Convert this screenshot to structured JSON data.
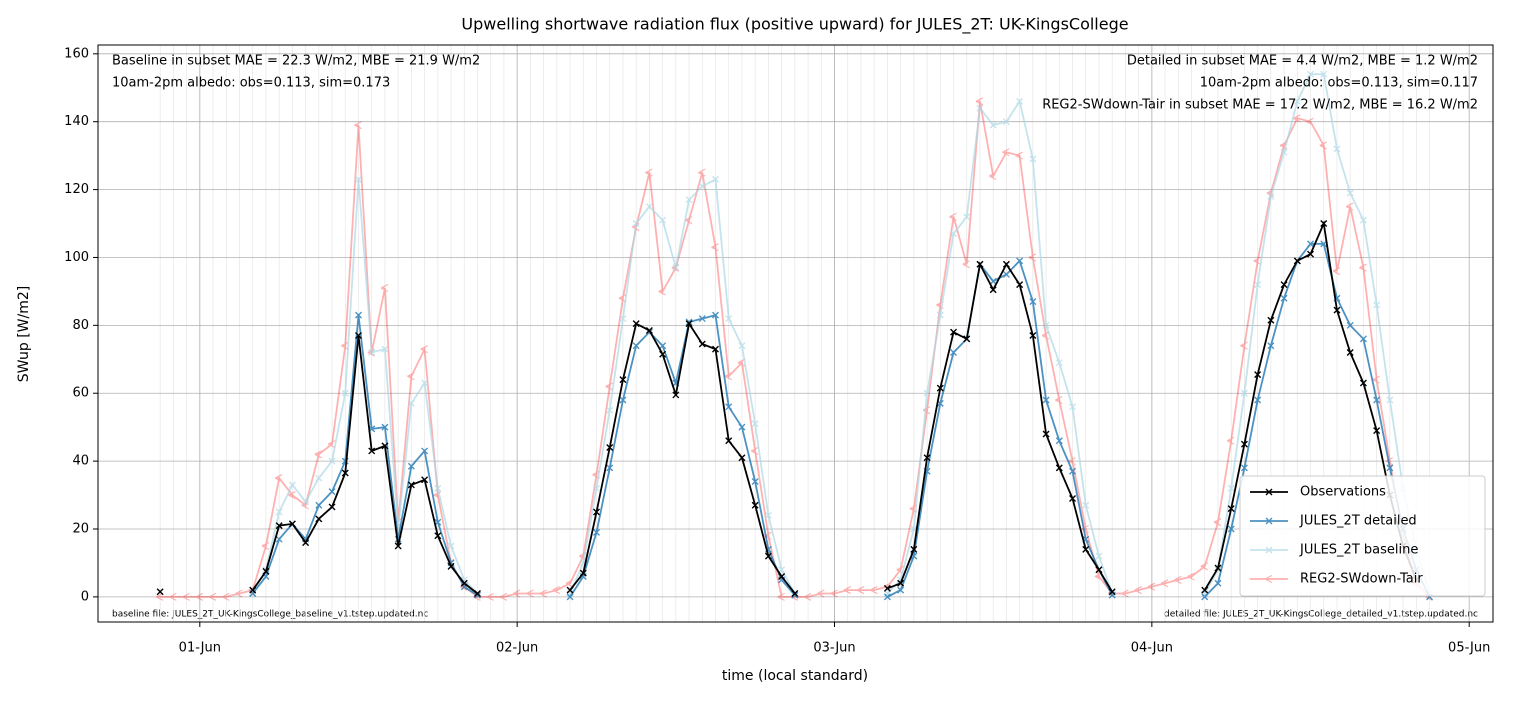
{
  "chart_data": {
    "type": "line",
    "title": "Upwelling shortwave radiation flux (positive upward) for JULES_2T: UK-KingsCollege",
    "x_label": "time (local standard)",
    "y_label": "SWup [W/m2]",
    "xlim": [
      -7.7,
      97.8
    ],
    "ylim": [
      -7.4,
      162.6
    ],
    "xticks": [
      {
        "value": 0,
        "label": "01-Jun"
      },
      {
        "value": 24,
        "label": "02-Jun"
      },
      {
        "value": 48,
        "label": "03-Jun"
      },
      {
        "value": 72,
        "label": "04-Jun"
      },
      {
        "value": 96,
        "label": "05-Jun"
      }
    ],
    "yticks": [
      0,
      20,
      40,
      60,
      80,
      100,
      120,
      140,
      160
    ],
    "grid": true,
    "minor_grid": true,
    "legend": "lower right",
    "annotations_left": [
      {
        "text": "Baseline in subset MAE = 22.3 W/m2, MBE = 21.9 W/m2",
        "color": "#add8e6"
      },
      {
        "text": "10am-2pm albedo: obs=0.113, sim=0.173",
        "color": "#000000"
      }
    ],
    "annotations_right": [
      {
        "text": "Detailed in subset MAE = 4.4 W/m2, MBE = 1.2 W/m2",
        "color": "#1f77b4"
      },
      {
        "text": "10am-2pm albedo: obs=0.113, sim=0.117",
        "color": "#000000"
      },
      {
        "text": "REG2-SWdown-Tair in subset MAE = 17.2 W/m2, MBE = 16.2 W/m2",
        "color": "#ff0000"
      }
    ],
    "footnote_left": "baseline file: JULES_2T_UK-KingsCollege_baseline_v1.tstep.updated.nc",
    "footnote_right": "detailed file: JULES_2T_UK-KingsCollege_detailed_v1.tstep.updated.nc",
    "x": [
      -3,
      -2,
      -1,
      0,
      1,
      2,
      3,
      4,
      5,
      6,
      7,
      8,
      9,
      10,
      11,
      12,
      13,
      14,
      15,
      16,
      17,
      18,
      19,
      20,
      21,
      22,
      23,
      24,
      25,
      26,
      27,
      28,
      29,
      30,
      31,
      32,
      33,
      34,
      35,
      36,
      37,
      38,
      39,
      40,
      41,
      42,
      43,
      44,
      45,
      46,
      47,
      48,
      49,
      50,
      51,
      52,
      53,
      54,
      55,
      56,
      57,
      58,
      59,
      60,
      61,
      62,
      63,
      64,
      65,
      66,
      67,
      68,
      69,
      70,
      71,
      72,
      73,
      74,
      75,
      76,
      77,
      78,
      79,
      80,
      81,
      82,
      83,
      84,
      85,
      86,
      87,
      88,
      89,
      90,
      91,
      92,
      93
    ],
    "series": [
      {
        "name": "REG2-SWdown-Tair",
        "color": "#ff0000",
        "alpha": 0.3,
        "marker": "tri",
        "values": [
          0,
          0,
          0,
          0,
          0,
          0,
          1,
          2,
          15,
          35,
          30,
          27,
          42,
          45,
          74,
          139,
          72,
          91,
          22,
          65,
          73,
          30,
          10,
          3,
          0,
          0,
          0,
          1,
          1,
          1,
          2,
          4,
          12,
          36,
          62,
          88,
          109,
          125,
          90,
          97,
          111,
          125,
          103,
          65,
          69,
          43,
          18,
          0,
          0,
          0,
          1,
          1,
          2,
          2,
          2,
          3,
          8,
          26,
          55,
          86,
          112,
          98,
          146,
          124,
          131,
          130,
          100,
          77,
          58,
          40,
          20,
          6,
          1,
          1,
          2,
          3,
          4,
          5,
          6,
          9,
          22,
          46,
          74,
          99,
          119,
          133,
          141,
          140,
          133,
          96,
          115,
          97,
          64,
          40,
          18,
          4,
          0
        ]
      },
      {
        "name": "JULES_2T baseline",
        "color": "#add8e6",
        "alpha": 0.7,
        "marker": "x",
        "values": [
          null,
          null,
          null,
          null,
          null,
          null,
          null,
          1,
          8,
          25,
          33,
          28,
          35,
          40,
          60,
          123,
          72,
          73,
          20,
          57,
          63,
          32,
          15,
          5,
          1,
          null,
          null,
          null,
          null,
          null,
          null,
          1,
          10,
          32,
          55,
          82,
          110,
          115,
          111,
          97,
          117,
          121,
          123,
          82,
          74,
          51,
          24,
          8,
          1,
          null,
          null,
          null,
          null,
          null,
          null,
          1,
          5,
          20,
          60,
          83,
          107,
          112,
          144,
          139,
          140,
          146,
          129,
          80,
          69,
          56,
          27,
          12,
          1,
          null,
          null,
          null,
          null,
          null,
          null,
          1,
          8,
          32,
          60,
          92,
          118,
          131,
          146,
          154,
          154,
          132,
          119,
          111,
          86,
          58,
          32,
          14,
          1
        ]
      },
      {
        "name": "JULES_2T detailed",
        "color": "#1f77b4",
        "alpha": 0.8,
        "marker": "x",
        "values": [
          null,
          null,
          null,
          null,
          null,
          null,
          null,
          1,
          6,
          17,
          21.5,
          17,
          27,
          31,
          40,
          83,
          49.5,
          50,
          17,
          38.5,
          43,
          22,
          10,
          3,
          0.5,
          null,
          null,
          null,
          null,
          null,
          null,
          0,
          6,
          19,
          38,
          58,
          74,
          78,
          74,
          63,
          81,
          82,
          83,
          56,
          50,
          34,
          14,
          5,
          0.5,
          null,
          null,
          null,
          null,
          null,
          null,
          0,
          2,
          12,
          37,
          57,
          72,
          76,
          98,
          93,
          95,
          99,
          87,
          58,
          46,
          37,
          17,
          8,
          0.5,
          null,
          null,
          null,
          null,
          null,
          null,
          0,
          4,
          20,
          38,
          58,
          74,
          88,
          99,
          104,
          104,
          88,
          80,
          76,
          58,
          38,
          20,
          8,
          0
        ]
      },
      {
        "name": "Observations",
        "color": "#000000",
        "alpha": 1,
        "marker": "x",
        "values": [
          1.5,
          null,
          null,
          null,
          null,
          null,
          null,
          2,
          7.5,
          21,
          21.5,
          16,
          23,
          26.5,
          36.5,
          77,
          43,
          44.5,
          15,
          33,
          34.5,
          18,
          9,
          4,
          1,
          null,
          null,
          null,
          null,
          null,
          null,
          2,
          7,
          25,
          44,
          64,
          80.5,
          78.5,
          71.5,
          59.5,
          80.5,
          74.5,
          73,
          46,
          41,
          27,
          12,
          6,
          1,
          null,
          null,
          null,
          null,
          null,
          null,
          2.5,
          4,
          14,
          41,
          61.5,
          78,
          76,
          98,
          90.5,
          98,
          92,
          77,
          48,
          38,
          29,
          14,
          8,
          1.5,
          null,
          null,
          null,
          null,
          null,
          null,
          2,
          8.5,
          26,
          45,
          65.5,
          81.5,
          92,
          99,
          101,
          110,
          84.5,
          72,
          63,
          49,
          30,
          15,
          5,
          null
        ]
      }
    ]
  }
}
